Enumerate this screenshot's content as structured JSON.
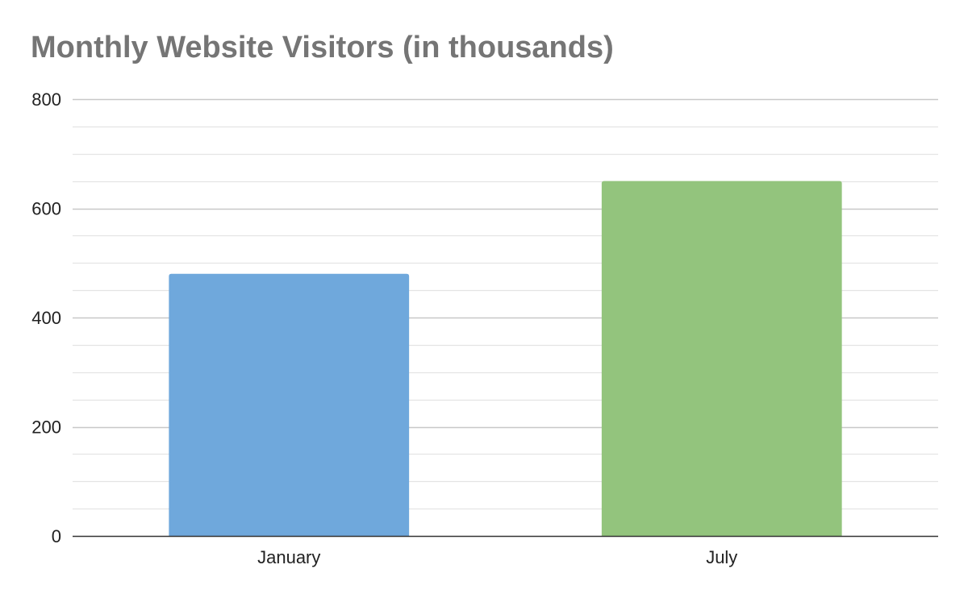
{
  "chart_data": {
    "type": "bar",
    "title": "Monthly Website Visitors (in thousands)",
    "categories": [
      "January",
      "July"
    ],
    "values": [
      480,
      650
    ],
    "bar_colors": [
      "#6fa8dc",
      "#93c47d"
    ],
    "ylim": [
      0,
      800
    ],
    "y_ticks": [
      0,
      200,
      400,
      600,
      800
    ],
    "y_minor_step": 50,
    "grid": true,
    "legend": "none"
  }
}
